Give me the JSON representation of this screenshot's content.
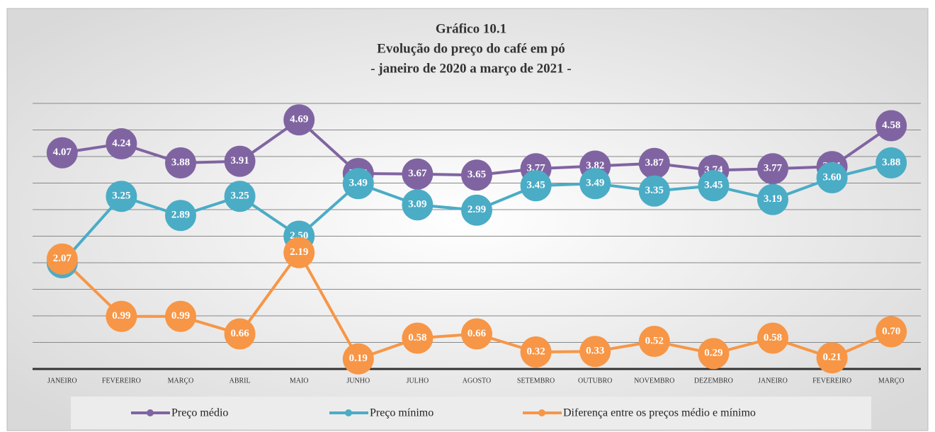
{
  "chart_data": {
    "type": "line",
    "title": "Gráfico 10.1",
    "subtitle": [
      "Evolução do preço do café em pó",
      "- janeiro de 2020 a março de 2021 -"
    ],
    "categories": [
      "JANEIRO",
      "FEVEREIRO",
      "MARÇO",
      "ABRIL",
      "MAIO",
      "JUNHO",
      "JULHO",
      "AGOSTO",
      "SETEMBRO",
      "OUTUBRO",
      "NOVEMBRO",
      "DEZEMBRO",
      "JANEIRO",
      "FEVEREIRO",
      "MARÇO"
    ],
    "series": [
      {
        "name": "Preço médio",
        "color": "#8064a2",
        "values": [
          4.07,
          4.24,
          3.88,
          3.91,
          4.69,
          3.68,
          3.67,
          3.65,
          3.77,
          3.82,
          3.87,
          3.74,
          3.77,
          3.81,
          4.58
        ],
        "value_labels": [
          "4.07",
          "4.24",
          "3.88",
          "3.91",
          "4.69",
          "3.68",
          "3.67",
          "3.65",
          "3.77",
          "3.82",
          "3.87",
          "3.74",
          "3.77",
          "3.81",
          "4.58"
        ]
      },
      {
        "name": "Preço mínimo",
        "color": "#4bacc6",
        "values": [
          2,
          3.25,
          2.89,
          3.25,
          2.5,
          3.49,
          3.09,
          2.99,
          3.45,
          3.49,
          3.35,
          3.45,
          3.19,
          3.6,
          3.88
        ],
        "value_labels": [
          "2.00",
          "3.25",
          "2.89",
          "3.25",
          "2.50",
          "3.49",
          "3.09",
          "2.99",
          "3.45",
          "3.49",
          "3.35",
          "3.45",
          "3.19",
          "3.60",
          "3.88"
        ]
      },
      {
        "name": "Diferença entre os preços médio e mínimo",
        "color": "#f79646",
        "values": [
          2.07,
          0.99,
          0.99,
          0.66,
          2.19,
          0.19,
          0.58,
          0.66,
          0.32,
          0.33,
          0.52,
          0.29,
          0.58,
          0.21,
          0.7
        ],
        "value_labels": [
          "2.07",
          "0.99",
          "0.99",
          "0.66",
          "2.19",
          "0.19",
          "0.58",
          "0.66",
          "0.32",
          "0.33",
          "0.52",
          "0.29",
          "0.58",
          "0.21",
          "0.70"
        ]
      }
    ],
    "ylim": [
      0,
      5
    ],
    "yticks": [
      0,
      0.5,
      1,
      1.5,
      2,
      2.5,
      3,
      3.5,
      4,
      4.5,
      5
    ],
    "grid": true
  }
}
